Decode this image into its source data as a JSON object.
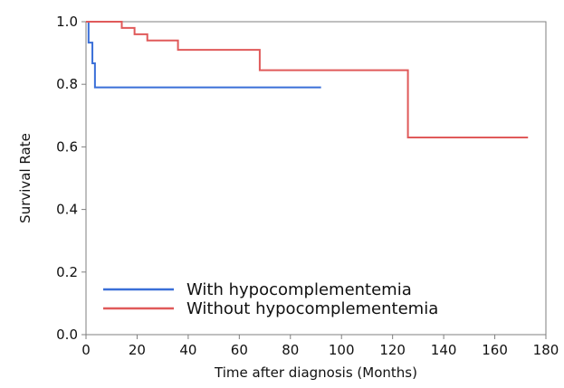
{
  "chart_data": {
    "type": "line",
    "title": "",
    "xlabel": "Time after diagnosis (Months)",
    "ylabel": "Survival Rate",
    "xlim": [
      0,
      180
    ],
    "ylim": [
      0,
      1.0
    ],
    "x_ticks": [
      "0",
      "20",
      "40",
      "60",
      "80",
      "100",
      "120",
      "140",
      "160",
      "180"
    ],
    "y_ticks": [
      "0.0",
      "0.2",
      "0.4",
      "0.6",
      "0.8",
      "1.0"
    ],
    "grid": false,
    "legend_position": "bottom-left",
    "step": true,
    "series": [
      {
        "name": "With hypocomplementemia",
        "color": "#3a6fd8",
        "x": [
          0,
          1,
          2.5,
          3.5,
          92
        ],
        "y": [
          1.0,
          0.933,
          0.867,
          0.79,
          0.79
        ]
      },
      {
        "name": "Without hypocomplementemia",
        "color": "#e05a5a",
        "x": [
          0,
          14,
          19,
          24,
          36,
          68,
          126,
          173
        ],
        "y": [
          1.0,
          0.98,
          0.96,
          0.94,
          0.91,
          0.845,
          0.63,
          0.63
        ]
      }
    ]
  }
}
